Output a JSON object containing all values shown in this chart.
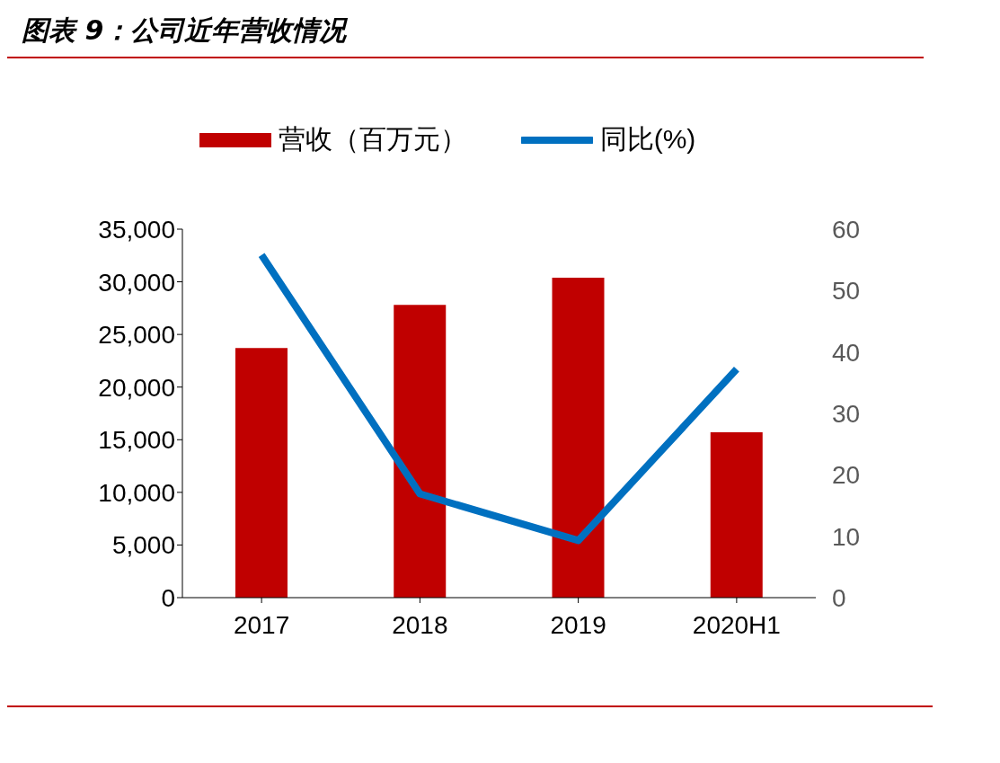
{
  "chart_data": {
    "type": "bar",
    "title": "图表 9：公司近年营收情况",
    "categories": [
      "2017",
      "2018",
      "2019",
      "2020H1"
    ],
    "series": [
      {
        "name": "营收（百万元）",
        "type": "bar",
        "color": "#c00000",
        "values": [
          23700,
          27800,
          30400,
          15700
        ]
      },
      {
        "name": "同比(%)",
        "type": "line",
        "axis": "y2",
        "color": "#0070c0",
        "values": [
          55.8,
          16.9,
          9.3,
          37.2
        ]
      }
    ],
    "ylim": [
      0,
      35000
    ],
    "yticks": [
      {
        "value": 0,
        "label": "0"
      },
      {
        "value": 5000,
        "label": "5,000"
      },
      {
        "value": 10000,
        "label": "10,000"
      },
      {
        "value": 15000,
        "label": "15,000"
      },
      {
        "value": 20000,
        "label": "20,000"
      },
      {
        "value": 25000,
        "label": "25,000"
      },
      {
        "value": 30000,
        "label": "30,000"
      },
      {
        "value": 35000,
        "label": "35,000"
      }
    ],
    "y2lim": [
      0,
      60
    ],
    "y2ticks": [
      0,
      10,
      20,
      30,
      40,
      50,
      60
    ],
    "legend": "top",
    "grid": false,
    "marker": "none",
    "line_style": "solid"
  }
}
